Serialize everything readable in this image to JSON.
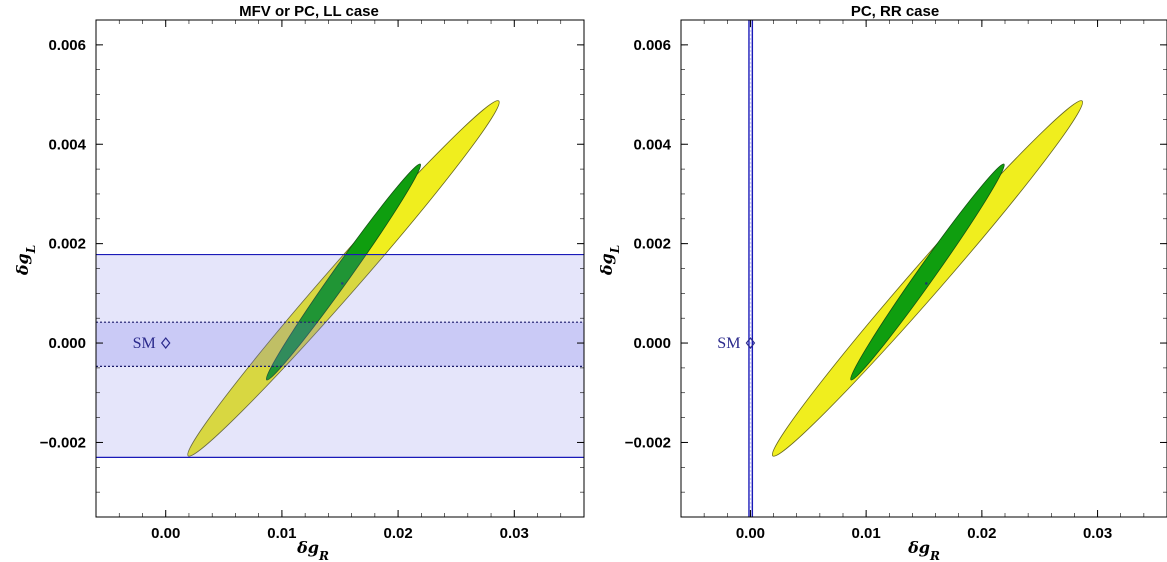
{
  "chart_data": [
    {
      "type": "contour",
      "title": "MFV or PC, LL case",
      "xlabel": "δg_R",
      "ylabel": "δg_L",
      "xlim": [
        -0.006,
        0.036
      ],
      "ylim": [
        -0.0035,
        0.0065
      ],
      "x_ticks": [
        0.0,
        0.01,
        0.02,
        0.03
      ],
      "x_tick_labels": [
        "0.00",
        "0.01",
        "0.02",
        "0.03"
      ],
      "y_ticks": [
        -0.002,
        0.0,
        0.002,
        0.004,
        0.006
      ],
      "y_tick_labels": [
        "−0.002",
        "0.000",
        "0.002",
        "0.004",
        "0.006"
      ],
      "fit_center": {
        "x": 0.0152,
        "y": 0.0012
      },
      "regions": [
        {
          "name": "outer",
          "color": "#f0ee1e",
          "cx": 0.0153,
          "cy": 0.0013,
          "x_extent": [
            -0.0004,
            0.0273
          ],
          "y_extent": [
            -0.0024,
            0.005
          ]
        },
        {
          "name": "inner",
          "color": "#0f9e0f",
          "cx": 0.0153,
          "cy": 0.00143,
          "x_extent": [
            0.0089,
            0.0226
          ],
          "y_extent": [
            -0.001,
            0.0035
          ]
        }
      ],
      "band": {
        "orientation": "horizontal",
        "solid_limits": [
          -0.0023,
          0.00178
        ],
        "dotted_limits": [
          -0.00047,
          0.00042
        ],
        "color": "#1a1ab8"
      },
      "sm_point": {
        "label": "SM",
        "x": 0.0,
        "y": 0.0
      }
    },
    {
      "type": "contour",
      "title": "PC, RR case",
      "xlabel": "δg_R",
      "ylabel": "δg_L",
      "xlim": [
        -0.006,
        0.036
      ],
      "ylim": [
        -0.0035,
        0.0065
      ],
      "x_ticks": [
        0.0,
        0.01,
        0.02,
        0.03
      ],
      "x_tick_labels": [
        "0.00",
        "0.01",
        "0.02",
        "0.03"
      ],
      "y_ticks": [
        -0.002,
        0.0,
        0.002,
        0.004,
        0.006
      ],
      "y_tick_labels": [
        "−0.002",
        "0.000",
        "0.002",
        "0.004",
        "0.006"
      ],
      "fit_center": {
        "x": 0.0152,
        "y": 0.0012
      },
      "regions": [
        {
          "name": "outer",
          "color": "#f0ee1e",
          "cx": 0.0153,
          "cy": 0.0013,
          "x_extent": [
            -0.0004,
            0.0273
          ],
          "y_extent": [
            -0.0024,
            0.005
          ]
        },
        {
          "name": "inner",
          "color": "#0f9e0f",
          "cx": 0.0153,
          "cy": 0.00143,
          "x_extent": [
            0.0089,
            0.0226
          ],
          "y_extent": [
            -0.001,
            0.0035
          ]
        }
      ],
      "band": {
        "orientation": "vertical",
        "solid_limits": [
          -0.00013,
          0.00017
        ],
        "dotted_limits": [
          -4e-05,
          6e-05
        ],
        "color": "#1a1ab8"
      },
      "sm_point": {
        "label": "SM",
        "x": 0.0,
        "y": 0.0
      }
    }
  ]
}
